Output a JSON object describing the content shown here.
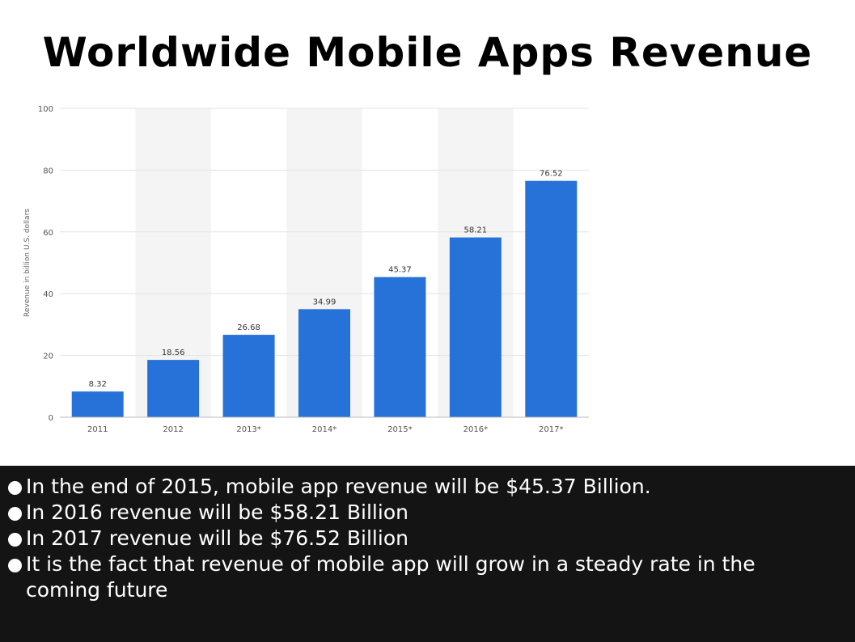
{
  "slide": {
    "title": "Worldwide Mobile Apps Revenue",
    "bullets": [
      "In the end of 2015, mobile app revenue will be $45.37 Billion.",
      "In 2016 revenue will be $58.21 Billion",
      "In 2017 revenue will be $76.52 Billion",
      "It is the fact that revenue of mobile app will  grow in a steady rate in the coming future"
    ],
    "colors": {
      "bar": "#2672d9",
      "panel": "#141414",
      "band": "#f4f4f4"
    }
  },
  "chart_data": {
    "type": "bar",
    "title": "",
    "xlabel": "",
    "ylabel": "Revenue in billion U.S. dollars",
    "categories": [
      "2011",
      "2012",
      "2013*",
      "2014*",
      "2015*",
      "2016*",
      "2017*"
    ],
    "values": [
      8.32,
      18.56,
      26.68,
      34.99,
      45.37,
      58.21,
      76.52
    ],
    "value_labels": [
      "8.32",
      "18.56",
      "26.68",
      "34.99",
      "45.37",
      "58.21",
      "76.52"
    ],
    "ylim": [
      0,
      100
    ],
    "yticks": [
      0,
      20,
      40,
      60,
      80,
      100
    ],
    "grid": true,
    "legend": "none"
  }
}
